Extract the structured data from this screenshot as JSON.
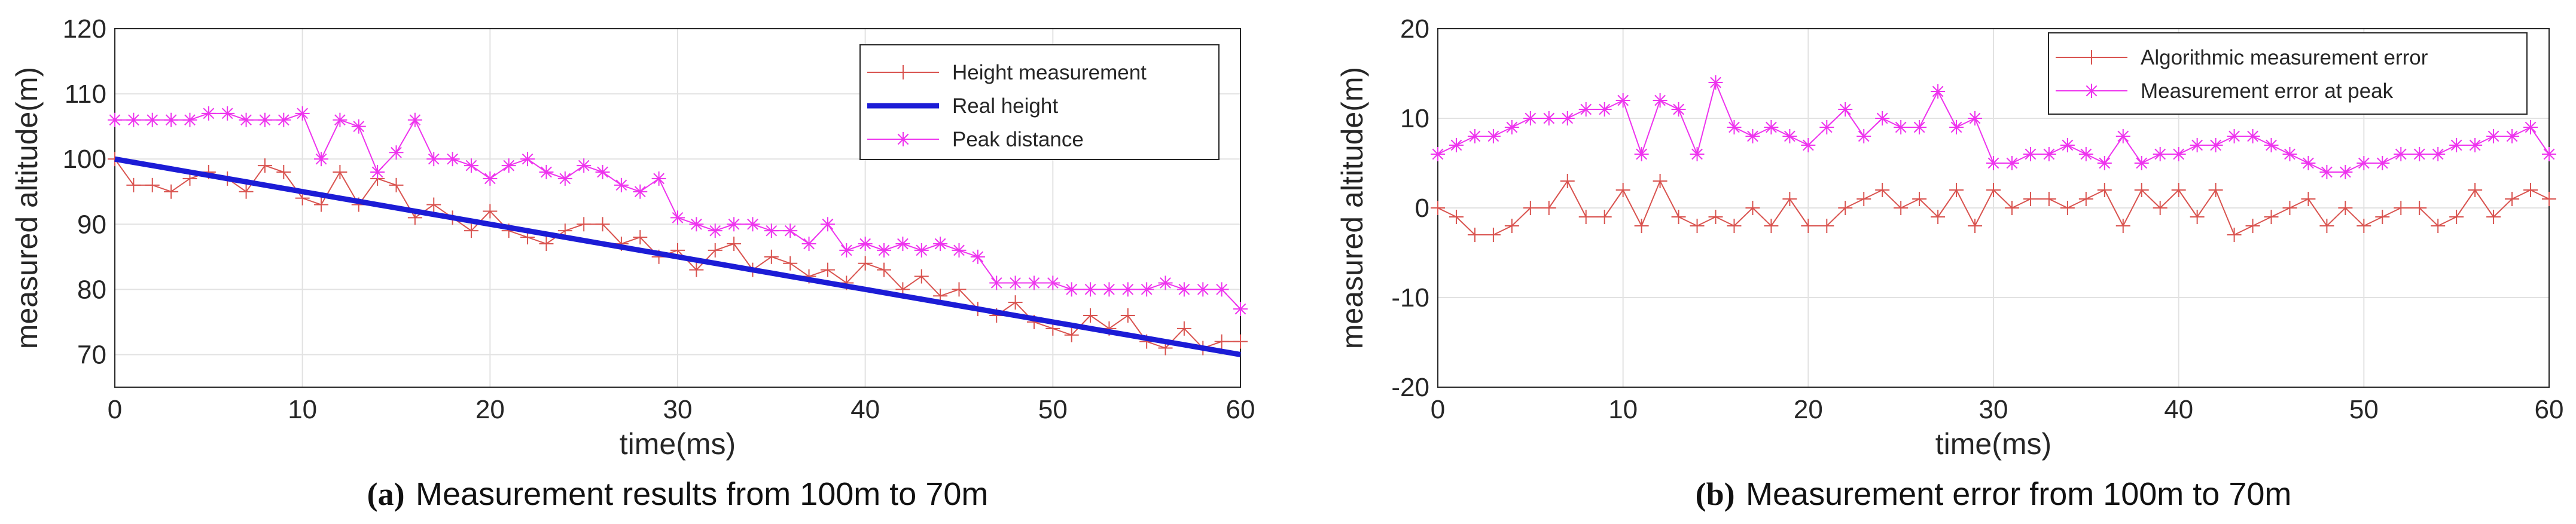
{
  "chart_data": [
    {
      "type": "line",
      "caption_letter": "(a)",
      "caption_text": "Measurement results from 100m to 70m",
      "title": "",
      "xlabel": "time(ms)",
      "ylabel": "measured altitude(m)",
      "xlim": [
        0,
        60
      ],
      "ylim": [
        65,
        120
      ],
      "xticks": [
        0,
        10,
        20,
        30,
        40,
        50,
        60
      ],
      "yticks": [
        70,
        80,
        90,
        100,
        110,
        120
      ],
      "grid": true,
      "legend_position": "top-right",
      "x": [
        0,
        1,
        2,
        3,
        4,
        5,
        6,
        7,
        8,
        9,
        10,
        11,
        12,
        13,
        14,
        15,
        16,
        17,
        18,
        19,
        20,
        21,
        22,
        23,
        24,
        25,
        26,
        27,
        28,
        29,
        30,
        31,
        32,
        33,
        34,
        35,
        36,
        37,
        38,
        39,
        40,
        41,
        42,
        43,
        44,
        45,
        46,
        47,
        48,
        49,
        50,
        51,
        52,
        53,
        54,
        55,
        56,
        57,
        58,
        59,
        60
      ],
      "series": [
        {
          "name": "Height measurement",
          "color": "#d9534f",
          "marker": "+",
          "values": [
            100,
            96,
            96,
            95,
            97,
            98,
            97,
            95,
            99,
            98,
            94,
            93,
            98,
            93,
            97,
            96,
            91,
            93,
            91,
            89,
            92,
            89,
            88,
            87,
            89,
            90,
            90,
            87,
            88,
            85,
            86,
            83,
            86,
            87,
            83,
            85,
            84,
            82,
            83,
            81,
            84,
            83,
            80,
            82,
            79,
            80,
            77,
            76,
            78,
            75,
            74,
            73,
            76,
            74,
            76,
            72,
            71,
            74,
            71,
            72,
            72
          ]
        },
        {
          "name": "Real height",
          "color": "#1c1cd6",
          "marker": "none",
          "values": [
            100,
            99.5,
            99,
            98.5,
            98,
            97.5,
            97,
            96.5,
            96,
            95.5,
            95,
            94.5,
            94,
            93.5,
            93,
            92.5,
            92,
            91.5,
            91,
            90.5,
            90,
            89.5,
            89,
            88.5,
            88,
            87.5,
            87,
            86.5,
            86,
            85.5,
            85,
            84.5,
            84,
            83.5,
            83,
            82.5,
            82,
            81.5,
            81,
            80.5,
            80,
            79.5,
            79,
            78.5,
            78,
            77.5,
            77,
            76.5,
            76,
            75.5,
            75,
            74.5,
            74,
            73.5,
            73,
            72.5,
            72,
            71.5,
            71,
            70.5,
            70
          ]
        },
        {
          "name": "Peak distance",
          "color": "#ee33ee",
          "marker": "*",
          "values": [
            106,
            106,
            106,
            106,
            106,
            107,
            107,
            106,
            106,
            106,
            107,
            100,
            106,
            105,
            98,
            101,
            106,
            100,
            100,
            99,
            97,
            99,
            100,
            98,
            97,
            99,
            98,
            96,
            95,
            97,
            91,
            90,
            89,
            90,
            90,
            89,
            89,
            87,
            90,
            86,
            87,
            86,
            87,
            86,
            87,
            86,
            85,
            81,
            81,
            81,
            81,
            80,
            80,
            80,
            80,
            80,
            81,
            80,
            80,
            80,
            77
          ]
        }
      ]
    },
    {
      "type": "line",
      "caption_letter": "(b)",
      "caption_text": "Measurement error from 100m to 70m",
      "title": "",
      "xlabel": "time(ms)",
      "ylabel": "measured altitude(m)",
      "xlim": [
        0,
        60
      ],
      "ylim": [
        -20,
        20
      ],
      "xticks": [
        0,
        10,
        20,
        30,
        40,
        50,
        60
      ],
      "yticks": [
        -20,
        -10,
        0,
        10,
        20
      ],
      "grid": true,
      "legend_position": "top-right",
      "x": [
        0,
        1,
        2,
        3,
        4,
        5,
        6,
        7,
        8,
        9,
        10,
        11,
        12,
        13,
        14,
        15,
        16,
        17,
        18,
        19,
        20,
        21,
        22,
        23,
        24,
        25,
        26,
        27,
        28,
        29,
        30,
        31,
        32,
        33,
        34,
        35,
        36,
        37,
        38,
        39,
        40,
        41,
        42,
        43,
        44,
        45,
        46,
        47,
        48,
        49,
        50,
        51,
        52,
        53,
        54,
        55,
        56,
        57,
        58,
        59,
        60
      ],
      "series": [
        {
          "name": "Algorithmic measurement error",
          "color": "#d9534f",
          "marker": "+",
          "values": [
            0,
            -1,
            -3,
            -3,
            -2,
            0,
            0,
            3,
            -1,
            -1,
            2,
            -2,
            3,
            -1,
            -2,
            -1,
            -2,
            0,
            -2,
            1,
            -2,
            -2,
            0,
            1,
            2,
            0,
            1,
            -1,
            2,
            -2,
            2,
            0,
            1,
            1,
            0,
            1,
            2,
            -2,
            2,
            0,
            2,
            -1,
            2,
            -3,
            -2,
            -1,
            0,
            1,
            -2,
            0,
            -2,
            -1,
            0,
            0,
            -2,
            -1,
            2,
            -1,
            1,
            2,
            1
          ]
        },
        {
          "name": "Measurement error at peak",
          "color": "#ee33ee",
          "marker": "*",
          "values": [
            6,
            7,
            8,
            8,
            9,
            10,
            10,
            10,
            11,
            11,
            12,
            6,
            12,
            11,
            6,
            14,
            9,
            8,
            9,
            8,
            7,
            9,
            11,
            8,
            10,
            9,
            9,
            13,
            9,
            10,
            5,
            5,
            6,
            6,
            7,
            6,
            5,
            8,
            5,
            6,
            6,
            7,
            7,
            8,
            8,
            7,
            6,
            5,
            4,
            4,
            5,
            5,
            6,
            6,
            6,
            7,
            7,
            8,
            8,
            9,
            6
          ]
        }
      ]
    }
  ]
}
